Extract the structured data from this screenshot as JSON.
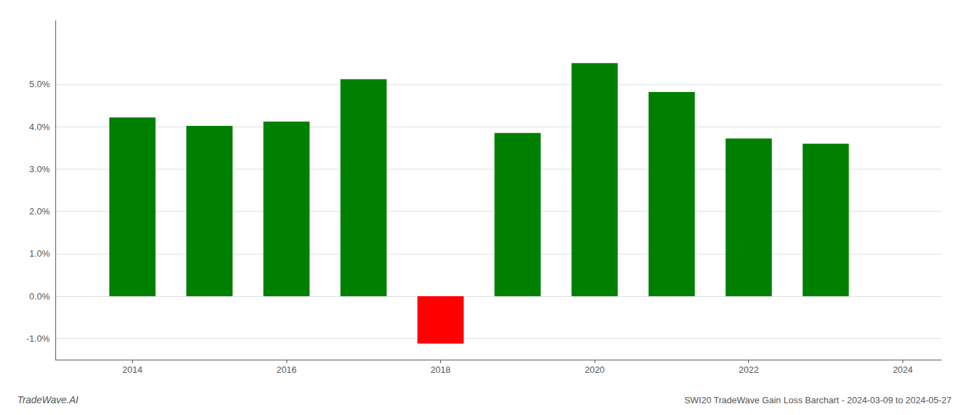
{
  "chart_data": {
    "type": "bar",
    "title": "SWI20 TradeWave Gain Loss Barchart - 2024-03-09 to 2024-05-27",
    "annotations": [
      "TradeWave.AI"
    ],
    "x": [
      2014,
      2015,
      2016,
      2017,
      2018,
      2019,
      2020,
      2021,
      2022,
      2023
    ],
    "values": [
      0.0422,
      0.0402,
      0.0412,
      0.0512,
      -0.0112,
      0.0385,
      0.055,
      0.0482,
      0.0372,
      0.036
    ],
    "colors": [
      "#008000",
      "#008000",
      "#008000",
      "#008000",
      "#ff0000",
      "#008000",
      "#008000",
      "#008000",
      "#008000",
      "#008000"
    ],
    "xlim": [
      2013.0,
      2024.5
    ],
    "xticks": [
      2014,
      2016,
      2018,
      2020,
      2022,
      2024
    ],
    "ylim": [
      -0.015,
      0.065
    ],
    "yticks": [
      {
        "value": -0.01,
        "label": "-1.0%"
      },
      {
        "value": 0.0,
        "label": "0.0%"
      },
      {
        "value": 0.01,
        "label": "1.0%"
      },
      {
        "value": 0.02,
        "label": "2.0%"
      },
      {
        "value": 0.03,
        "label": "3.0%"
      },
      {
        "value": 0.04,
        "label": "4.0%"
      },
      {
        "value": 0.05,
        "label": "5.0%"
      }
    ],
    "grid": true
  }
}
